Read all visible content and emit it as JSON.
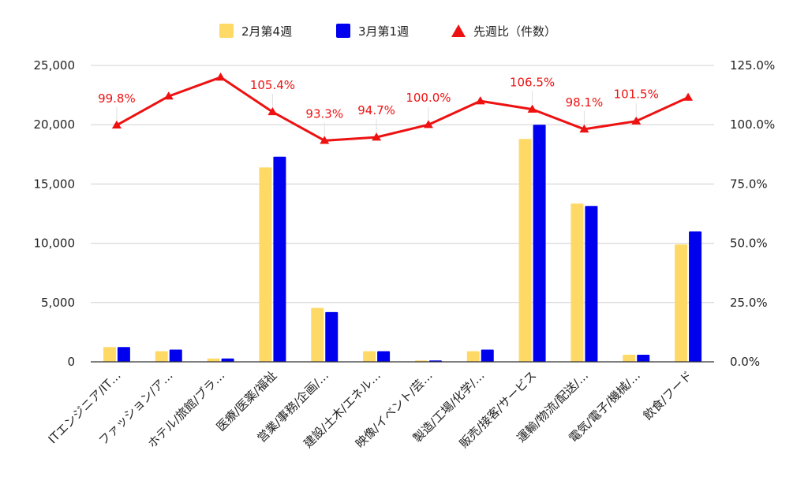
{
  "chart_data": {
    "type": "bar",
    "categories": [
      "ITエンジニア/IT…",
      "ファッション/ア…",
      "ホテル/旅館/ブラ…",
      "医療/医薬/福祉",
      "営業/事務/企画/…",
      "建設/土木/エネル…",
      "映像/イベント/芸…",
      "製造/工場/化学/…",
      "販売/接客/サービス",
      "運輸/物流/配送/…",
      "電気/電子/機械/…",
      "飲食/フード"
    ],
    "series": [
      {
        "name": "2月第4週",
        "type": "bar",
        "axis": "left",
        "color": "#ffd966",
        "values": [
          1250,
          900,
          280,
          16400,
          4550,
          900,
          120,
          900,
          18800,
          13350,
          600,
          9900
        ]
      },
      {
        "name": "3月第1週",
        "type": "bar",
        "axis": "left",
        "color": "#0000ee",
        "values": [
          1250,
          1030,
          280,
          17300,
          4200,
          900,
          120,
          1030,
          20000,
          13150,
          600,
          11000
        ]
      },
      {
        "name": "先週比（件数）",
        "type": "line",
        "axis": "right",
        "color": "#ee1111",
        "marker": "triangle",
        "values": [
          99.8,
          112.0,
          120.0,
          105.4,
          93.3,
          94.7,
          100.0,
          110.0,
          106.5,
          98.1,
          101.5,
          111.5
        ]
      }
    ],
    "line_labels": [
      "99.8%",
      "",
      "",
      "105.4%",
      "93.3%",
      "94.7%",
      "100.0%",
      "",
      "106.5%",
      "98.1%",
      "101.5%",
      ""
    ],
    "y_left": {
      "min": 0,
      "max": 25000,
      "ticks": [
        "0",
        "5,000",
        "10,000",
        "15,000",
        "20,000",
        "25,000"
      ]
    },
    "y_right": {
      "min": 0,
      "max": 125,
      "ticks": [
        "0.0%",
        "25.0%",
        "50.0%",
        "75.0%",
        "100.0%",
        "125.0%"
      ]
    },
    "grid": true,
    "legend_position": "top"
  }
}
